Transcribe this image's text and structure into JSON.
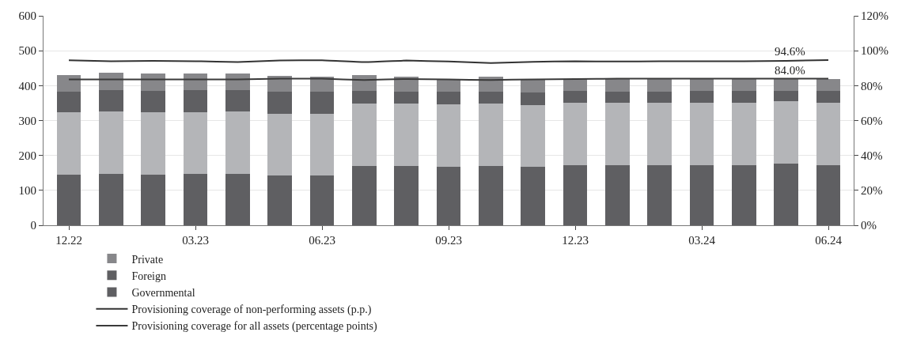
{
  "chart_data": {
    "type": "bar",
    "stacked": true,
    "categories": [
      "12.22",
      null,
      null,
      "03.23",
      null,
      null,
      "06.23",
      null,
      null,
      "09.23",
      null,
      null,
      "12.23",
      null,
      null,
      "03.24",
      null,
      null,
      "06.24"
    ],
    "series": [
      {
        "name": "Governmental",
        "color": "#5f5f62",
        "values": [
          145,
          147,
          145,
          147,
          148,
          142,
          142,
          170,
          170,
          168,
          170,
          167,
          173,
          173,
          172,
          173,
          173,
          176,
          173
        ]
      },
      {
        "color": "#b4b5b8",
        "values": [
          178,
          178,
          178,
          176,
          178,
          178,
          178,
          178,
          178,
          178,
          178,
          178,
          179,
          177,
          178,
          179,
          179,
          180,
          179
        ]
      },
      {
        "name": "Foreign",
        "color": "#5f5f62",
        "values": [
          59,
          62,
          61,
          64,
          62,
          62,
          62,
          36,
          35,
          36,
          35,
          35,
          33,
          33,
          32,
          33,
          33,
          29,
          33
        ]
      },
      {
        "name": "Private",
        "color": "#87878a",
        "values": [
          49,
          51,
          51,
          47,
          47,
          46,
          44,
          46,
          43,
          38,
          42,
          40,
          33,
          35,
          36,
          33,
          33,
          33,
          33
        ]
      },
      {
        "name": "Provisioning coverage of non-performing assets (p.p.)",
        "type": "line",
        "axis": "y2",
        "color": "#333333",
        "values": [
          94.5,
          94,
          94.2,
          94,
          93.5,
          94.4,
          94.5,
          93.5,
          94.4,
          93.8,
          93,
          93.6,
          94,
          93.8,
          94,
          94,
          94,
          94.2,
          94.6
        ]
      },
      {
        "name": "Provisioning coverage for all assets (percentage points)",
        "type": "line",
        "axis": "y2",
        "color": "#3a3a3a",
        "values": [
          83.5,
          83.6,
          83.6,
          83.6,
          83.5,
          84,
          84,
          83.2,
          83.8,
          83.5,
          83.2,
          83.6,
          83.8,
          84,
          84,
          84,
          84,
          84,
          84.0
        ]
      }
    ],
    "ylim": [
      0,
      600
    ],
    "yticks": [
      0,
      100,
      200,
      300,
      400,
      500,
      600
    ],
    "y2lim": [
      0,
      120
    ],
    "y2ticks": [
      {
        "value": 0,
        "label": "0%"
      },
      {
        "value": 20,
        "label": "20%"
      },
      {
        "value": 40,
        "label": "40%"
      },
      {
        "value": 60,
        "label": "60%"
      },
      {
        "value": 80,
        "label": "80%"
      },
      {
        "value": 100,
        "label": "100%"
      },
      {
        "value": 120,
        "label": "120%"
      }
    ],
    "annotations": [
      "94.6%",
      "84.0%"
    ],
    "grid": "y",
    "legend": "bottom",
    "marker": "none"
  }
}
